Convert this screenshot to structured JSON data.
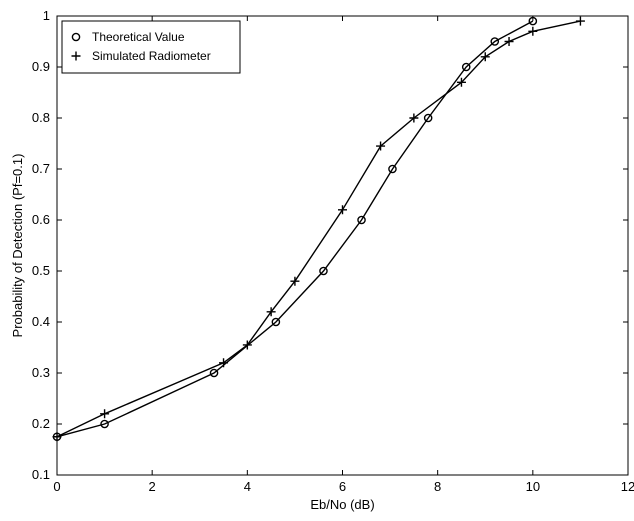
{
  "chart_data": {
    "type": "line",
    "title": "",
    "xlabel": "Eb/No (dB)",
    "ylabel": "Probability of Detection (Pf=0.1)",
    "xlim": [
      0,
      12
    ],
    "ylim": [
      0.1,
      1
    ],
    "xticks": [
      0,
      2,
      4,
      6,
      8,
      10,
      12
    ],
    "xtick_labels": [
      "0",
      "2",
      "4",
      "6",
      "8",
      "10",
      "12"
    ],
    "yticks": [
      0.1,
      0.2,
      0.3,
      0.4,
      0.5,
      0.6,
      0.7,
      0.8,
      0.9,
      1
    ],
    "ytick_labels": [
      "0.1",
      "0.2",
      "0.3",
      "0.4",
      "0.5",
      "0.6",
      "0.7",
      "0.8",
      "0.9",
      "1"
    ],
    "grid": false,
    "legend_position": "top-left",
    "series": [
      {
        "name": "Theoretical Value",
        "marker": "circle",
        "color": "#000000",
        "x": [
          0,
          1,
          3.3,
          4.6,
          5.6,
          6.4,
          7.05,
          7.8,
          8.6,
          9.2,
          10.0
        ],
        "y": [
          0.175,
          0.2,
          0.3,
          0.4,
          0.5,
          0.6,
          0.7,
          0.8,
          0.9,
          0.95,
          0.99
        ]
      },
      {
        "name": "Simulated Radiometer",
        "marker": "plus",
        "color": "#000000",
        "x": [
          0,
          1,
          3.5,
          4.0,
          4.5,
          5.0,
          6.0,
          6.8,
          7.5,
          8.5,
          9.0,
          9.5,
          10.0,
          11.0
        ],
        "y": [
          0.175,
          0.22,
          0.32,
          0.355,
          0.42,
          0.48,
          0.62,
          0.745,
          0.8,
          0.87,
          0.92,
          0.95,
          0.97,
          0.99
        ]
      }
    ]
  }
}
